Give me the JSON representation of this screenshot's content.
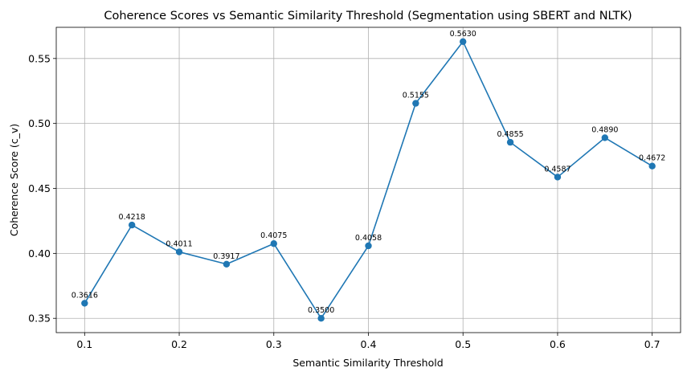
{
  "chart_data": {
    "type": "line",
    "title": "Coherence Scores vs Semantic Similarity Threshold (Segmentation using SBERT and NLTK)",
    "xlabel": "Semantic Similarity Threshold",
    "ylabel": "Coherence Score (c_v)",
    "x": [
      0.1,
      0.15,
      0.2,
      0.25,
      0.3,
      0.35,
      0.4,
      0.45,
      0.5,
      0.55,
      0.6,
      0.65,
      0.7
    ],
    "series": [
      {
        "values": [
          0.3616,
          0.4218,
          0.4011,
          0.3917,
          0.4075,
          0.35,
          0.4058,
          0.5155,
          0.563,
          0.4855,
          0.4587,
          0.489,
          0.4672
        ],
        "labels": [
          "0.3616",
          "0.4218",
          "0.4011",
          "0.3917",
          "0.4075",
          "0.3500",
          "0.4058",
          "0.5155",
          "0.5630",
          "0.4855",
          "0.4587",
          "0.4890",
          "0.4672"
        ],
        "color": "#1f77b4",
        "marker": "circle"
      }
    ],
    "xlim": [
      0.07,
      0.73
    ],
    "ylim": [
      0.339,
      0.574
    ],
    "xticks": [
      0.1,
      0.2,
      0.3,
      0.4,
      0.5,
      0.6,
      0.7
    ],
    "xtick_labels": [
      "0.1",
      "0.2",
      "0.3",
      "0.4",
      "0.5",
      "0.6",
      "0.7"
    ],
    "yticks": [
      0.35,
      0.4,
      0.45,
      0.5,
      0.55
    ],
    "ytick_labels": [
      "0.35",
      "0.40",
      "0.45",
      "0.50",
      "0.55"
    ],
    "grid": true,
    "legend": "none"
  }
}
